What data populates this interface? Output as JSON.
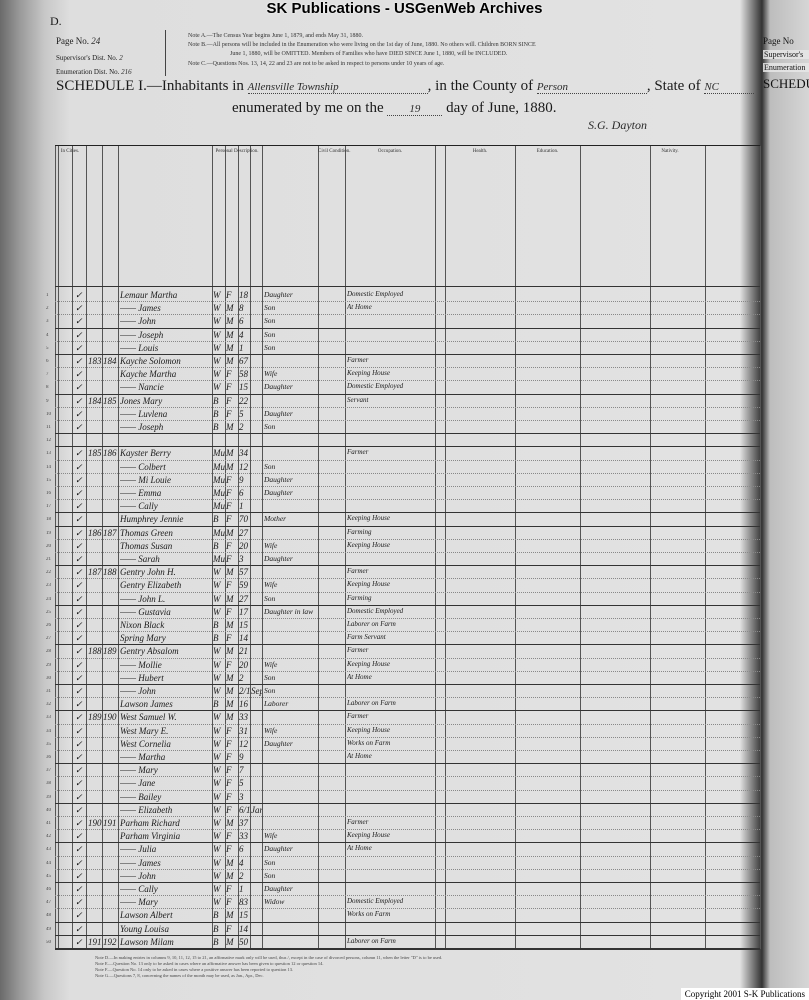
{
  "watermark": "SK Publications - USGenWeb Archives",
  "copyright": "Copyright 2001 S-K Publications",
  "form_letter": "D.",
  "page_no_label": "Page No.",
  "page_no": "24",
  "supervisor_label": "Supervisor's Dist. No.",
  "supervisor": "2",
  "enum_label": "Enumeration Dist. No.",
  "enum": "216",
  "notes": [
    "Note A.—The Census Year begins June 1, 1879, and ends May 31, 1880.",
    "Note B.—All persons will be included in the Enumeration who were living on the 1st day of June, 1880. No others will. Children BORN SINCE",
    "June 1, 1880, will be OMITTED. Members of Families who have DIED SINCE June 1, 1880, will be INCLUDED.",
    "Note C.—Questions Nos. 13, 14, 22 and 23 are not to be asked in respect to persons under 10 years of age."
  ],
  "schedule": {
    "prefix": "SCHEDULE I.—Inhabitants in",
    "township": "Allensville Township",
    "county_label": ", in the County of",
    "county": "Person",
    "state_label": ", State of",
    "state": "NC",
    "enum_prefix": "enumerated by me on the",
    "day": "19",
    "enum_suffix": "day of June, 1880.",
    "signature": "S.G. Dayton"
  },
  "column_groups": [
    "In Cities.",
    "Personal Description.",
    "Civil Condition.",
    "Occupation.",
    "Health.",
    "Education.",
    "Nativity."
  ],
  "right_page": {
    "page": "Page No",
    "supervisor": "Supervisor's",
    "enum": "Enumeration",
    "schedule": "SCHEDU"
  },
  "footer_notes": [
    "Note D.—In making entries in columns 9, 10, 11, 12, 15 to 21, an affirmative mark only will be used, thus /, except in the case of divorced persons, column 11, when the letter \"D\" is to be used.",
    "Note E.—Question No. 13 only to be asked in cases where an affirmative answer has been given to question 12 or question 14.",
    "Note F.—Question No. 14 only to be asked in cases where a positive answer has been reported to question 13.",
    "Note G.—Questions 7, 8, concerning the names of the month may be used, as Jan., Apr., Dec."
  ],
  "rows": [
    [
      "",
      "",
      "Lemaur Martha",
      "W",
      "F",
      "18",
      "",
      "Daughter",
      "Domestic Employed"
    ],
    [
      "",
      "",
      "—— James",
      "W",
      "M",
      "8",
      "",
      "Son",
      "At Home"
    ],
    [
      "",
      "",
      "—— John",
      "W",
      "M",
      "6",
      "",
      "Son",
      ""
    ],
    [
      "",
      "",
      "—— Joseph",
      "W",
      "M",
      "4",
      "",
      "Son",
      ""
    ],
    [
      "",
      "",
      "—— Louis",
      "W",
      "M",
      "1",
      "",
      "Son",
      ""
    ],
    [
      "183",
      "184",
      "Kayche Solomon",
      "W",
      "M",
      "67",
      "",
      "",
      "Farmer"
    ],
    [
      "",
      "",
      "Kayche Martha",
      "W",
      "F",
      "58",
      "",
      "Wife",
      "Keeping House"
    ],
    [
      "",
      "",
      "—— Nancie",
      "W",
      "F",
      "15",
      "",
      "Daughter",
      "Domestic Employed"
    ],
    [
      "184",
      "185",
      "Jones Mary",
      "B",
      "F",
      "22",
      "",
      "",
      "Servant"
    ],
    [
      "",
      "",
      "—— Luvlena",
      "B",
      "F",
      "5",
      "",
      "Daughter",
      ""
    ],
    [
      "",
      "",
      "—— Joseph",
      "B",
      "M",
      "2",
      "",
      "Son",
      ""
    ],
    [
      "",
      "",
      "",
      "",
      "",
      "",
      "",
      "",
      ""
    ],
    [
      "185",
      "186",
      "Kayster Berry",
      "Mu",
      "M",
      "34",
      "",
      "",
      "Farmer"
    ],
    [
      "",
      "",
      "—— Colbert",
      "Mu",
      "M",
      "12",
      "",
      "Son",
      ""
    ],
    [
      "",
      "",
      "—— Mi Louie",
      "Mu",
      "F",
      "9",
      "",
      "Daughter",
      ""
    ],
    [
      "",
      "",
      "—— Emma",
      "Mu",
      "F",
      "6",
      "",
      "Daughter",
      ""
    ],
    [
      "",
      "",
      "—— Cally",
      "Mu",
      "F",
      "1",
      "",
      "",
      ""
    ],
    [
      "",
      "",
      "Humphrey Jennie",
      "B",
      "F",
      "70",
      "",
      "Mother",
      "Keeping House"
    ],
    [
      "186",
      "187",
      "Thomas Green",
      "Mu",
      "M",
      "27",
      "",
      "",
      "Farming"
    ],
    [
      "",
      "",
      "Thomas Susan",
      "B",
      "F",
      "20",
      "",
      "Wife",
      "Keeping House"
    ],
    [
      "",
      "",
      "—— Sarah",
      "Mu",
      "F",
      "3",
      "",
      "Daughter",
      ""
    ],
    [
      "187",
      "188",
      "Gentry John H.",
      "W",
      "M",
      "57",
      "",
      "",
      "Farmer"
    ],
    [
      "",
      "",
      "Gentry Elizabeth",
      "W",
      "F",
      "59",
      "",
      "Wife",
      "Keeping House"
    ],
    [
      "",
      "",
      "—— John L.",
      "W",
      "M",
      "27",
      "",
      "Son",
      "Farming"
    ],
    [
      "",
      "",
      "—— Gustavia",
      "W",
      "F",
      "17",
      "",
      "Daughter in law",
      "Domestic Employed"
    ],
    [
      "",
      "",
      "Nixon Black",
      "B",
      "M",
      "15",
      "",
      "",
      "Laborer on Farm"
    ],
    [
      "",
      "",
      "Spring Mary",
      "B",
      "F",
      "14",
      "",
      "",
      "Farm Servant"
    ],
    [
      "188",
      "189",
      "Gentry Absalom",
      "W",
      "M",
      "21",
      "",
      "",
      "Farmer"
    ],
    [
      "",
      "",
      "—— Mollie",
      "W",
      "F",
      "20",
      "",
      "Wife",
      "Keeping House"
    ],
    [
      "",
      "",
      "—— Hubert",
      "W",
      "M",
      "2",
      "",
      "Son",
      "At Home"
    ],
    [
      "",
      "",
      "—— John",
      "W",
      "M",
      "2/12",
      "Sept",
      "Son",
      ""
    ],
    [
      "",
      "",
      "Lawson James",
      "B",
      "M",
      "16",
      "",
      "Laborer",
      "Laborer on Farm"
    ],
    [
      "189",
      "190",
      "West Samuel W.",
      "W",
      "M",
      "33",
      "",
      "",
      "Farmer"
    ],
    [
      "",
      "",
      "West Mary E.",
      "W",
      "F",
      "31",
      "",
      "Wife",
      "Keeping House"
    ],
    [
      "",
      "",
      "West Cornelia",
      "W",
      "F",
      "12",
      "",
      "Daughter",
      "Works on Farm"
    ],
    [
      "",
      "",
      "—— Martha",
      "W",
      "F",
      "9",
      "",
      "",
      "At Home"
    ],
    [
      "",
      "",
      "—— Mary",
      "W",
      "F",
      "7",
      "",
      "",
      ""
    ],
    [
      "",
      "",
      "—— Jane",
      "W",
      "F",
      "5",
      "",
      "",
      ""
    ],
    [
      "",
      "",
      "—— Bailey",
      "W",
      "F",
      "3",
      "",
      "",
      ""
    ],
    [
      "",
      "",
      "—— Elizabeth",
      "W",
      "F",
      "6/12",
      "Jan",
      "",
      ""
    ],
    [
      "190",
      "191",
      "Parham Richard",
      "W",
      "M",
      "37",
      "",
      "",
      "Farmer"
    ],
    [
      "",
      "",
      "Parham Virginia",
      "W",
      "F",
      "33",
      "",
      "Wife",
      "Keeping House"
    ],
    [
      "",
      "",
      "—— Julia",
      "W",
      "F",
      "6",
      "",
      "Daughter",
      "At Home"
    ],
    [
      "",
      "",
      "—— James",
      "W",
      "M",
      "4",
      "",
      "Son",
      ""
    ],
    [
      "",
      "",
      "—— John",
      "W",
      "M",
      "2",
      "",
      "Son",
      ""
    ],
    [
      "",
      "",
      "—— Cally",
      "W",
      "F",
      "1",
      "",
      "Daughter",
      ""
    ],
    [
      "",
      "",
      "—— Mary",
      "W",
      "F",
      "83",
      "",
      "Widow",
      "Domestic Employed"
    ],
    [
      "",
      "",
      "Lawson Albert",
      "B",
      "M",
      "15",
      "",
      "",
      "Works on Farm"
    ],
    [
      "",
      "",
      "Young Louisa",
      "B",
      "F",
      "14",
      "",
      "",
      ""
    ],
    [
      "191",
      "192",
      "Lawson Milam",
      "B",
      "M",
      "50",
      "",
      "",
      "Laborer on Farm"
    ]
  ]
}
